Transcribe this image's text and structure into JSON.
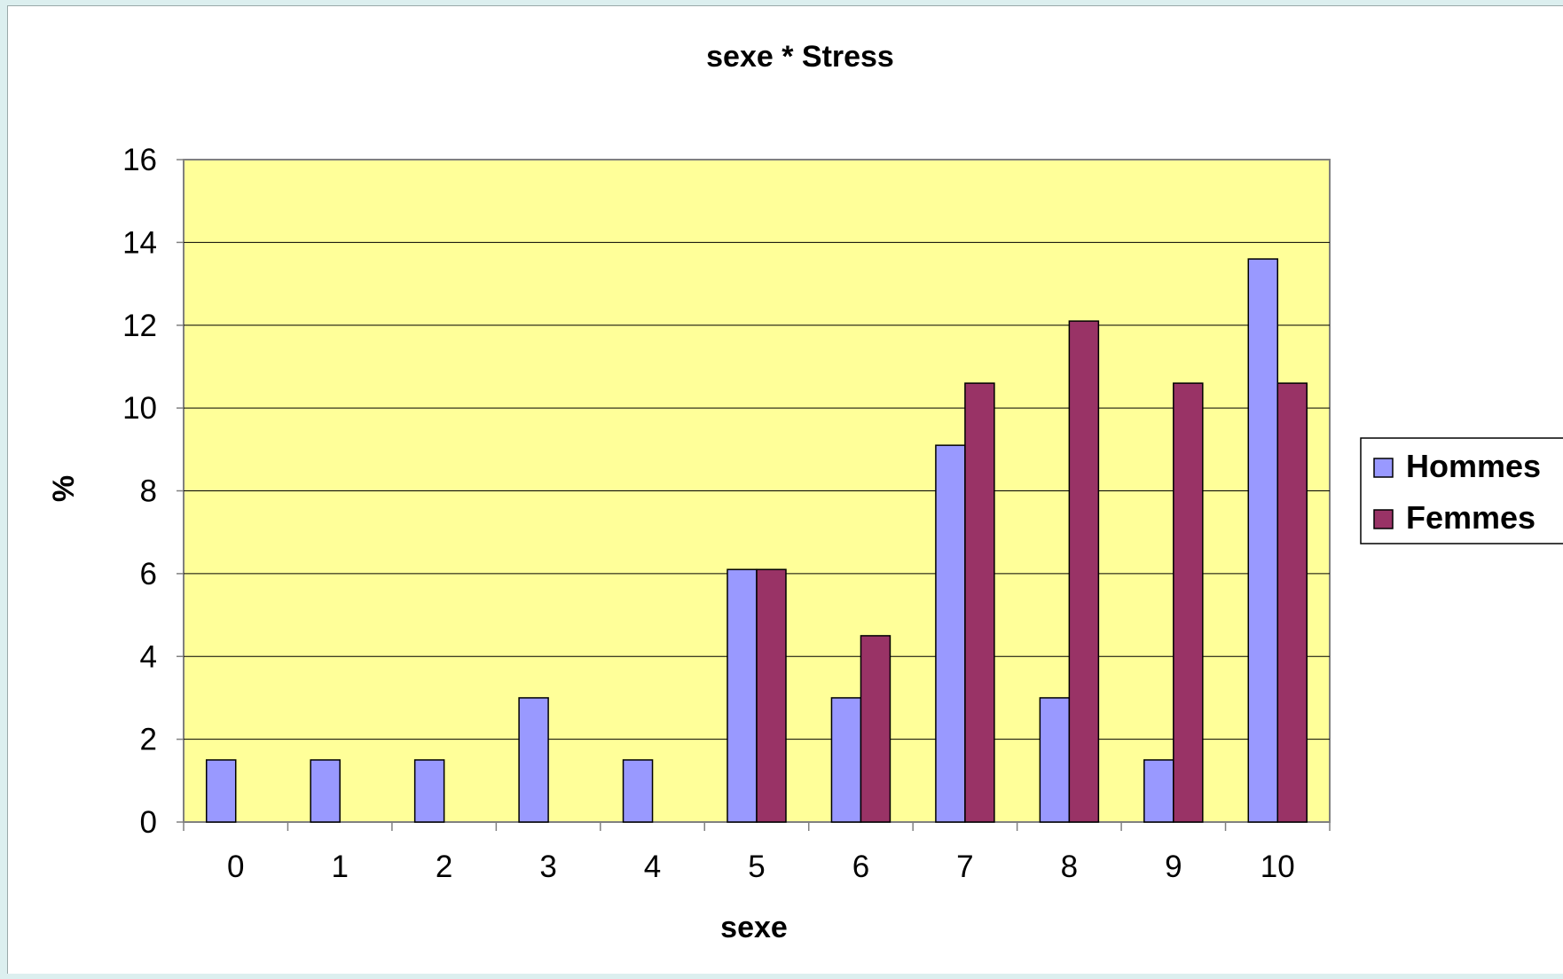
{
  "chart_data": {
    "type": "bar",
    "title": "sexe * Stress",
    "xlabel": "sexe",
    "ylabel": "%",
    "categories": [
      "0",
      "1",
      "2",
      "3",
      "4",
      "5",
      "6",
      "7",
      "8",
      "9",
      "10"
    ],
    "series": [
      {
        "name": "Hommes",
        "color": "#9999ff",
        "values": [
          1.5,
          1.5,
          1.5,
          3.0,
          1.5,
          6.1,
          3.0,
          9.1,
          3.0,
          1.5,
          13.6
        ]
      },
      {
        "name": "Femmes",
        "color": "#993366",
        "values": [
          0,
          0,
          0,
          0,
          0,
          6.1,
          4.5,
          10.6,
          12.1,
          10.6,
          10.6
        ]
      }
    ],
    "ylim": [
      0,
      16
    ],
    "yticks": [
      "0",
      "2",
      "4",
      "6",
      "8",
      "10",
      "12",
      "14",
      "16"
    ],
    "grid": true,
    "plot_background": "#ffff99",
    "legend_position": "right"
  }
}
